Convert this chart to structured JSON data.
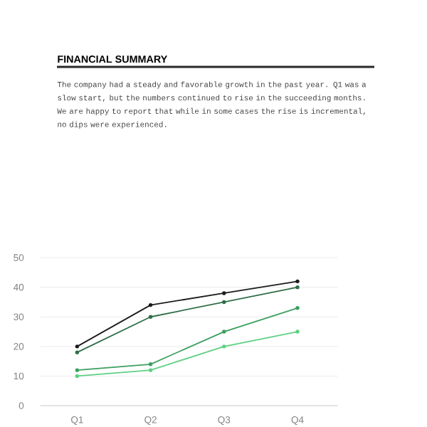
{
  "chart_data": {
    "type": "line",
    "title": "FINANCIAL SUMMARY",
    "subtitle": "The company had a steady and favorable growth in the past year. Q1 was a slow start, but the numbers continued to rise in the succeeding months. We are happy to report that while in some cases the rise is incremental, no dips were experienced.",
    "categories": [
      "Q1",
      "Q2",
      "Q3",
      "Q4"
    ],
    "series": [
      {
        "color": "#1c1c1c",
        "values": [
          20,
          34,
          38,
          42
        ]
      },
      {
        "color": "#2f6e48",
        "values": [
          18,
          30,
          35,
          40
        ]
      },
      {
        "color": "#3d9f60",
        "values": [
          12,
          14,
          25,
          33
        ]
      },
      {
        "color": "#5fd085",
        "values": [
          10,
          12,
          20,
          25
        ]
      }
    ],
    "ylim": [
      0,
      50
    ],
    "yticks": [
      0,
      10,
      20,
      30,
      40,
      50
    ],
    "grid": "y",
    "marker": "circle",
    "line_style": "solid"
  }
}
